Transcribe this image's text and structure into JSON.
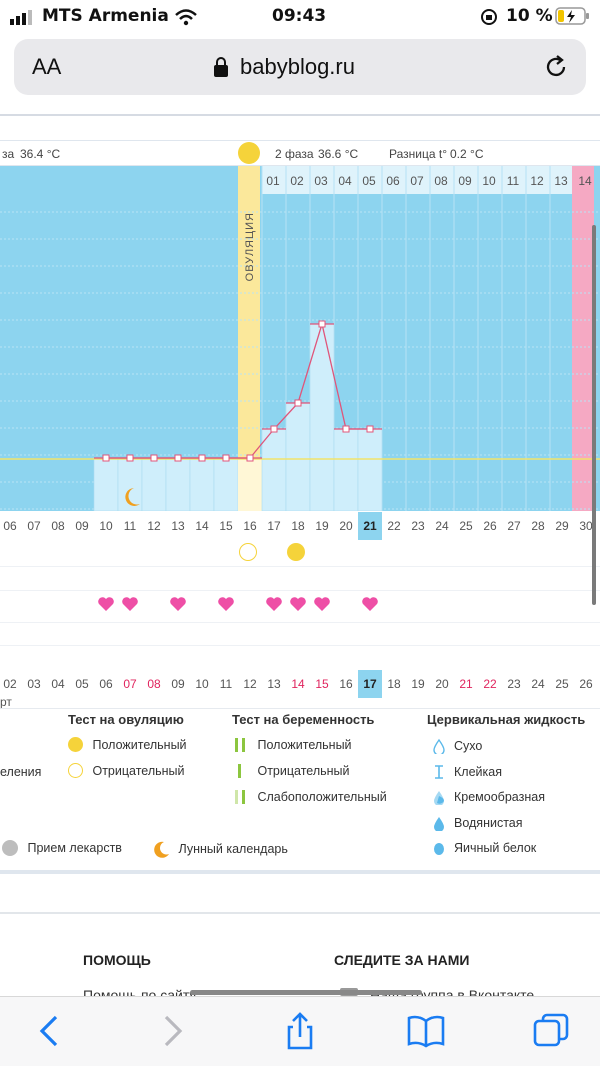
{
  "status_bar": {
    "carrier": "MTS Armenia",
    "time": "09:43",
    "battery": "10 %"
  },
  "browser": {
    "aa_label": "AA",
    "url": "babyblog.ru"
  },
  "chart_header": {
    "phase1_label": "за",
    "phase1_value": "36.4 °C",
    "phase2_label": "2 фаза",
    "phase2_value": "36.6 °C",
    "diff_label": "Разница t°",
    "diff_value": "0.2 °C"
  },
  "ovulation_label": "ОВУЛЯЦИЯ",
  "cycle_days_top": [
    "01",
    "02",
    "03",
    "04",
    "05",
    "06",
    "07",
    "08",
    "09",
    "10",
    "11",
    "12",
    "13",
    "14"
  ],
  "cycle_days_bottom": [
    "06",
    "07",
    "08",
    "09",
    "10",
    "11",
    "12",
    "13",
    "14",
    "15",
    "16",
    "17",
    "18",
    "19",
    "20",
    "21",
    "22",
    "23",
    "24",
    "25",
    "26",
    "27",
    "28",
    "29",
    "30"
  ],
  "calendar_dates": [
    "02",
    "03",
    "04",
    "05",
    "06",
    "07",
    "08",
    "09",
    "10",
    "11",
    "12",
    "13",
    "14",
    "15",
    "16",
    "17",
    "18",
    "19",
    "20",
    "21",
    "22",
    "23",
    "24",
    "25",
    "26"
  ],
  "partial_text_left": "рт",
  "chart_data": {
    "type": "line",
    "x": [
      "10",
      "11",
      "12",
      "13",
      "14",
      "15",
      "16",
      "17",
      "18",
      "19",
      "20",
      "21"
    ],
    "values": [
      36.4,
      36.4,
      36.4,
      36.4,
      36.4,
      36.4,
      36.4,
      36.6,
      36.8,
      37.4,
      36.6,
      36.6
    ],
    "baseline": 36.4
  },
  "legend": {
    "ovulation_test": {
      "title": "Тест на овуляцию",
      "positive": "Положительный",
      "negative": "Отрицательный"
    },
    "pregnancy_test": {
      "title": "Тест на беременность",
      "positive": "Положительный",
      "negative": "Отрицательный",
      "weak": "Слабоположительный"
    },
    "cervical": {
      "title": "Цервикальная жидкость",
      "items": [
        "Сухо",
        "Клейкая",
        "Кремообразная",
        "Водянистая",
        "Яичный белок"
      ]
    },
    "partial_left": "еления",
    "medication": "Прием лекарств",
    "lunar": "Лунный календарь"
  },
  "footer": {
    "help": "ПОМОЩЬ",
    "follow": "СЛЕДИТЕ ЗА НАМИ",
    "help_link": "Помощь по сайту",
    "vk_link": "Наша группа в Вконтакте"
  },
  "colors": {
    "chart_blue": "#8dd4ef",
    "bar_light": "#cfeefb",
    "ovulation_yellow": "#fbe89b",
    "pink_column": "#f5a9c3",
    "line_pink": "#e0557a",
    "heart": "#ee4fa6",
    "yellow_dot": "#f5d33a",
    "green_test": "#8cc63f",
    "drop_blue": "#5bb9ea"
  }
}
